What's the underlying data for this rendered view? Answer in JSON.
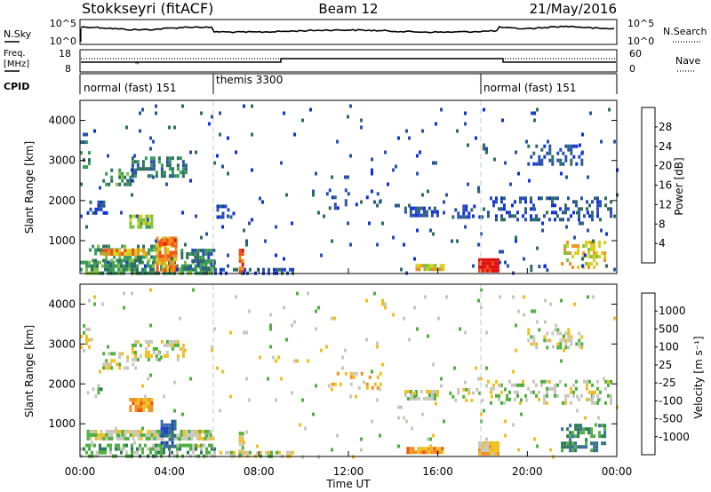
{
  "header": {
    "station": "Stokkseyri (fitACF)",
    "beam": "Beam 12",
    "date": "21/May/2016"
  },
  "sky_panel": {
    "left_label": "N.Sky",
    "right_label": "N.Search",
    "left_ticks": [
      "10^5",
      "10^0"
    ],
    "right_ticks": [
      "10^5",
      "10^0"
    ]
  },
  "freq_panel": {
    "left_label_1": "Freq.",
    "left_label_2": "[MHz]",
    "right_label": "Nave",
    "left_ticks": [
      "18",
      "8"
    ],
    "right_ticks": [
      "60",
      "0"
    ]
  },
  "cpid_panel": {
    "label": "CPID",
    "modes": [
      {
        "name": "normal (fast) 151",
        "start_hour": 0
      },
      {
        "name": "themis 3300",
        "start_hour": 6
      },
      {
        "name": "normal (fast) 151",
        "start_hour": 18
      }
    ]
  },
  "colors": {
    "power_scale": [
      "#1030e0",
      "#2850b0",
      "#2e6e60",
      "#3a9a5a",
      "#80c040",
      "#d8d020",
      "#f09020",
      "#f05010",
      "#e01010"
    ],
    "velocity_scale": [
      "#1a3ec8",
      "#3c6ab0",
      "#2e7a58",
      "#50b040",
      "#c8c8c0",
      "#f0c020",
      "#f09020",
      "#f05010",
      "#e01010"
    ],
    "ground_scatter": "#bdbdbd"
  },
  "chart_data": [
    {
      "type": "heatmap",
      "panel": "power",
      "ylabel": "Slant Range [km]",
      "ylim": [
        180,
        4500
      ],
      "yticks": [
        "1000",
        "2000",
        "3000",
        "4000"
      ],
      "xlim_hours": [
        0,
        24
      ],
      "colorbar_label": "Power [dB]",
      "colorbar_ticks": [
        "28",
        "24",
        "20",
        "16",
        "12",
        "8",
        "4"
      ],
      "colorbar_range": [
        0,
        30
      ],
      "patches": [
        {
          "t0": 0.0,
          "t1": 0.4,
          "r0": 2800,
          "r1": 3500,
          "lvl": 2,
          "dens": 0.35
        },
        {
          "t0": 0.3,
          "t1": 1.2,
          "r0": 1700,
          "r1": 2000,
          "lvl": 1,
          "dens": 0.5
        },
        {
          "t0": 1.0,
          "t1": 2.5,
          "r0": 2400,
          "r1": 2800,
          "lvl": 3,
          "dens": 0.5
        },
        {
          "t0": 2.3,
          "t1": 4.8,
          "r0": 2600,
          "r1": 3100,
          "lvl": 2,
          "dens": 0.45
        },
        {
          "t0": 2.2,
          "t1": 3.2,
          "r0": 1300,
          "r1": 1650,
          "lvl": 4,
          "dens": 0.8
        },
        {
          "t0": 0.0,
          "t1": 6.0,
          "r0": 180,
          "r1": 500,
          "lvl": 3,
          "dens": 0.75
        },
        {
          "t0": 0.4,
          "t1": 3.4,
          "r0": 500,
          "r1": 900,
          "lvl": 3,
          "dens": 0.55
        },
        {
          "t0": 1.0,
          "t1": 3.0,
          "r0": 700,
          "r1": 800,
          "lvl": 6,
          "dens": 0.9
        },
        {
          "t0": 3.4,
          "t1": 4.3,
          "r0": 250,
          "r1": 1100,
          "lvl": 6,
          "dens": 0.85
        },
        {
          "t0": 3.6,
          "t1": 4.2,
          "r0": 900,
          "r1": 1050,
          "lvl": 7,
          "dens": 0.9
        },
        {
          "t0": 4.5,
          "t1": 6.0,
          "r0": 350,
          "r1": 800,
          "lvl": 2,
          "dens": 0.55
        },
        {
          "t0": 6.0,
          "t1": 9.5,
          "r0": 180,
          "r1": 320,
          "lvl": 1,
          "dens": 0.55
        },
        {
          "t0": 6.1,
          "t1": 6.9,
          "r0": 1600,
          "r1": 1900,
          "lvl": 1,
          "dens": 0.4
        },
        {
          "t0": 7.1,
          "t1": 7.3,
          "r0": 200,
          "r1": 800,
          "lvl": 7,
          "dens": 0.9
        },
        {
          "t0": 11.0,
          "t1": 13.5,
          "r0": 1800,
          "r1": 2300,
          "lvl": 1,
          "dens": 0.12
        },
        {
          "t0": 14.5,
          "t1": 16.0,
          "r0": 1600,
          "r1": 1850,
          "lvl": 1,
          "dens": 0.6
        },
        {
          "t0": 15.0,
          "t1": 16.2,
          "r0": 300,
          "r1": 420,
          "lvl": 5,
          "dens": 0.9
        },
        {
          "t0": 16.5,
          "t1": 18.0,
          "r0": 1600,
          "r1": 1900,
          "lvl": 1,
          "dens": 0.35
        },
        {
          "t0": 17.8,
          "t1": 18.7,
          "r0": 220,
          "r1": 560,
          "lvl": 8,
          "dens": 1.0
        },
        {
          "t0": 18.2,
          "t1": 23.8,
          "r0": 1500,
          "r1": 2100,
          "lvl": 1,
          "dens": 0.35
        },
        {
          "t0": 20.0,
          "t1": 22.5,
          "r0": 2900,
          "r1": 3400,
          "lvl": 1,
          "dens": 0.4
        },
        {
          "t0": 21.5,
          "t1": 23.5,
          "r0": 350,
          "r1": 1000,
          "lvl": 5,
          "dens": 0.45
        },
        {
          "t0": 20.0,
          "t1": 21.0,
          "r0": 250,
          "r1": 400,
          "lvl": 2,
          "dens": 0.4
        },
        {
          "t0": 0.0,
          "t1": 24.0,
          "r0": 180,
          "r1": 4400,
          "lvl": 1,
          "dens": 0.02
        }
      ]
    },
    {
      "type": "heatmap",
      "panel": "velocity",
      "ylabel": "Slant Range [km]",
      "ylim": [
        180,
        4500
      ],
      "yticks": [
        "1000",
        "2000",
        "3000",
        "4000"
      ],
      "xlim_hours": [
        0,
        24
      ],
      "xticks": [
        "00:00",
        "04:00",
        "08:00",
        "12:00",
        "16:00",
        "20:00",
        "00:00"
      ],
      "xlabel": "Time UT",
      "colorbar_label": "Velocity [m s⁻¹]",
      "colorbar_ticks": [
        "1000",
        "500",
        "100",
        "25",
        "-25",
        "-100",
        "-500",
        "-1000"
      ],
      "patches": [
        {
          "t0": 0.0,
          "t1": 0.4,
          "r0": 2800,
          "r1": 3500,
          "lvl": 4,
          "dens": 0.3
        },
        {
          "t0": 0.3,
          "t1": 1.2,
          "r0": 1700,
          "r1": 2000,
          "lvl": 3,
          "dens": 0.4
        },
        {
          "t0": 1.0,
          "t1": 2.5,
          "r0": 2400,
          "r1": 2800,
          "lvl": 4,
          "dens": 0.45
        },
        {
          "t0": 2.3,
          "t1": 4.8,
          "r0": 2600,
          "r1": 3100,
          "lvl": 4,
          "dens": 0.4
        },
        {
          "t0": 2.2,
          "t1": 3.2,
          "r0": 1300,
          "r1": 1650,
          "lvl": 6,
          "dens": 0.8
        },
        {
          "t0": 0.0,
          "t1": 6.0,
          "r0": 180,
          "r1": 500,
          "lvl": 3,
          "dens": 0.6
        },
        {
          "t0": 0.3,
          "t1": 6.0,
          "r0": 600,
          "r1": 850,
          "lvl": 4,
          "dens": 0.85
        },
        {
          "t0": 3.6,
          "t1": 4.2,
          "r0": 400,
          "r1": 1100,
          "lvl": 1,
          "dens": 0.8
        },
        {
          "t0": 6.0,
          "t1": 9.5,
          "r0": 180,
          "r1": 320,
          "lvl": 4,
          "dens": 0.55
        },
        {
          "t0": 7.1,
          "t1": 7.3,
          "r0": 200,
          "r1": 800,
          "lvl": 4,
          "dens": 0.9
        },
        {
          "t0": 11.0,
          "t1": 13.5,
          "r0": 1800,
          "r1": 2300,
          "lvl": 5,
          "dens": 0.12
        },
        {
          "t0": 14.5,
          "t1": 16.0,
          "r0": 1600,
          "r1": 1850,
          "lvl": 4,
          "dens": 0.6
        },
        {
          "t0": 14.6,
          "t1": 16.2,
          "r0": 300,
          "r1": 420,
          "lvl": 6,
          "dens": 0.9
        },
        {
          "t0": 16.5,
          "t1": 18.0,
          "r0": 1600,
          "r1": 1900,
          "lvl": 4,
          "dens": 0.35
        },
        {
          "t0": 17.8,
          "t1": 18.7,
          "r0": 220,
          "r1": 560,
          "lvl": 5,
          "dens": 1.0
        },
        {
          "t0": 18.2,
          "t1": 23.8,
          "r0": 1500,
          "r1": 2100,
          "lvl": 4,
          "dens": 0.35
        },
        {
          "t0": 20.0,
          "t1": 22.5,
          "r0": 2900,
          "r1": 3400,
          "lvl": 4,
          "dens": 0.4
        },
        {
          "t0": 21.5,
          "t1": 23.5,
          "r0": 350,
          "r1": 1000,
          "lvl": 2,
          "dens": 0.45
        },
        {
          "t0": 0.0,
          "t1": 24.0,
          "r0": 180,
          "r1": 4400,
          "lvl": 4,
          "dens": 0.02
        }
      ]
    }
  ]
}
